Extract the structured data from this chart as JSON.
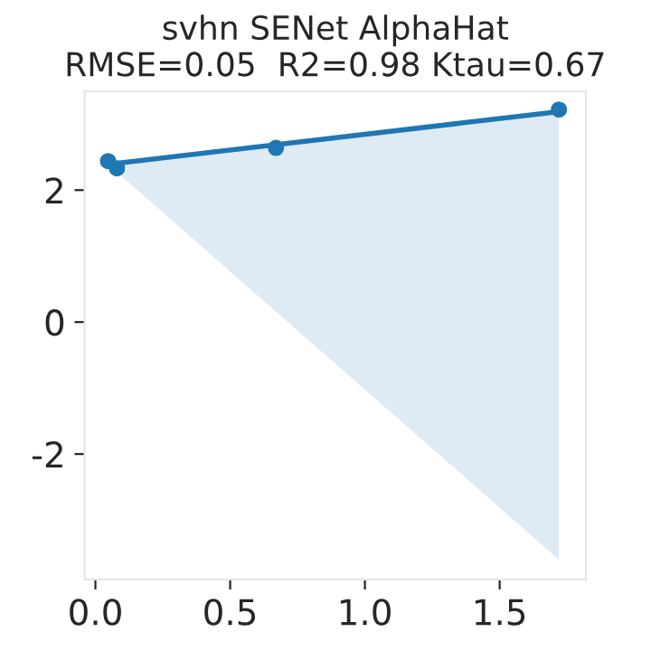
{
  "chart_data": {
    "type": "scatter",
    "title": "svhn SENet AlphaHat\nRMSE=0.05  R2=0.98 Ktau=0.67",
    "x": [
      0.047,
      0.08,
      0.67,
      1.72
    ],
    "series": [
      {
        "color": "#1f77b4",
        "marker": "circle",
        "values": [
          2.44,
          2.33,
          2.64,
          3.22
        ]
      },
      {
        "type": "line",
        "marker": "none",
        "color": "#1f77b4",
        "x": [
          0.047,
          1.72
        ],
        "values": [
          2.39,
          3.19
        ],
        "lower": [
          2.39,
          -3.6
        ],
        "upper": [
          2.42,
          3.21
        ]
      }
    ],
    "xlim": [
      -0.04,
      1.82
    ],
    "ylim": [
      -3.9,
      3.5
    ],
    "xticks": [
      {
        "value": 0,
        "label": "0.0"
      },
      0.5,
      {
        "value": 1,
        "label": "1.0"
      },
      1.5
    ],
    "yticks": [
      -2,
      0,
      2
    ],
    "grid": false
  }
}
